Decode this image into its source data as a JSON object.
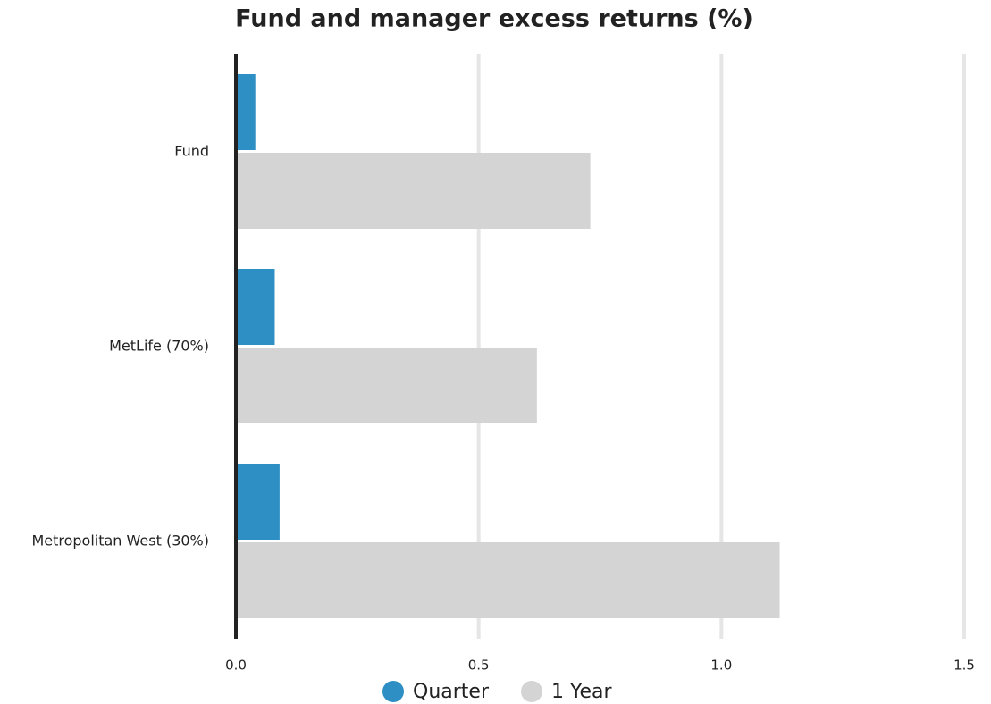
{
  "chart_data": {
    "type": "hbar",
    "title": "Fund and manager excess returns (%)",
    "categories": [
      "Fund",
      "MetLife (70%)",
      "Metropolitan West (30%)"
    ],
    "series": [
      {
        "name": "Quarter",
        "color": "#2e8fc4",
        "values": [
          0.04,
          0.08,
          0.09
        ]
      },
      {
        "name": "1 Year",
        "color": "#d4d4d4",
        "values": [
          0.73,
          0.62,
          1.12
        ]
      }
    ],
    "xlim": [
      0,
      1.5
    ],
    "xticks": [
      {
        "value": 0,
        "label": "0.0"
      },
      0.5,
      {
        "value": 1,
        "label": "1.0"
      },
      1.5
    ],
    "grid": true,
    "legend": "bottom"
  }
}
